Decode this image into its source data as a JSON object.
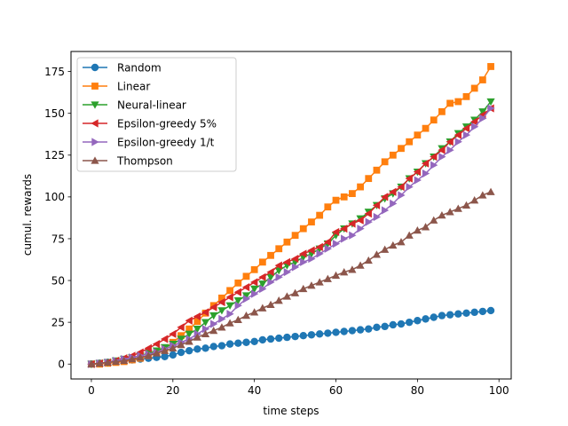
{
  "chart_data": {
    "type": "line",
    "title": "",
    "xlabel": "time steps",
    "ylabel": "cumul. rewards",
    "xlim": [
      -5,
      103
    ],
    "ylim": [
      -8.9,
      187
    ],
    "xticks": [
      0,
      20,
      40,
      60,
      80,
      100
    ],
    "yticks": [
      0,
      25,
      50,
      75,
      100,
      125,
      150,
      175
    ],
    "grid": false,
    "legend_position": "top-left",
    "x": [
      0,
      2,
      4,
      6,
      8,
      10,
      12,
      14,
      16,
      18,
      20,
      22,
      24,
      26,
      28,
      30,
      32,
      34,
      36,
      38,
      40,
      42,
      44,
      46,
      48,
      50,
      52,
      54,
      56,
      58,
      60,
      62,
      64,
      66,
      68,
      70,
      72,
      74,
      76,
      78,
      80,
      82,
      84,
      86,
      88,
      90,
      92,
      94,
      96,
      98
    ],
    "series": [
      {
        "name": "Random",
        "color": "#1f77b4",
        "marker": "circle",
        "values": [
          0,
          0.5,
          1,
          1.5,
          2,
          2.5,
          3,
          3.5,
          4,
          4.5,
          5.5,
          7,
          8,
          9,
          9.5,
          10.5,
          11,
          12,
          12.5,
          13,
          13.5,
          14.5,
          15,
          15.5,
          16,
          16.5,
          17,
          17.5,
          18,
          18.5,
          19,
          19.5,
          20,
          20.5,
          21,
          22,
          22.5,
          23.5,
          24,
          25,
          26,
          27,
          28,
          29,
          29.5,
          30,
          30.5,
          31,
          31.5,
          32
        ]
      },
      {
        "name": "Linear",
        "color": "#ff7f0e",
        "marker": "square",
        "values": [
          0,
          0,
          0.5,
          1,
          1.5,
          2.5,
          3.5,
          5,
          7,
          9.5,
          13,
          17,
          21,
          25.5,
          30.5,
          35,
          39.5,
          44,
          48.5,
          52.5,
          56.5,
          61,
          65,
          69,
          73,
          77,
          81,
          85,
          89,
          94,
          98,
          100,
          102,
          106,
          111,
          116,
          121,
          125,
          129,
          133,
          137,
          141,
          146,
          151,
          156,
          157,
          160,
          165,
          170,
          178
        ]
      },
      {
        "name": "Neural-linear",
        "color": "#2ca02c",
        "marker": "triangle-down",
        "values": [
          0,
          0.5,
          1,
          2,
          3,
          4,
          5,
          6.5,
          8,
          10,
          12,
          15,
          18,
          21,
          25,
          29,
          32,
          35,
          38,
          41,
          45,
          48,
          52,
          56,
          59,
          61,
          64,
          66,
          69,
          72,
          77,
          81,
          84,
          87,
          91,
          95,
          99,
          102,
          106,
          111,
          115,
          120,
          124,
          129,
          133,
          138,
          142,
          146,
          151,
          157
        ]
      },
      {
        "name": "Epsilon-greedy 5%",
        "color": "#d62728",
        "marker": "triangle-left",
        "values": [
          0,
          0.5,
          1,
          2,
          3.5,
          5,
          7,
          9.5,
          12,
          15,
          18,
          22,
          26,
          28.5,
          31,
          34,
          37,
          40,
          43,
          46,
          49,
          52,
          55,
          59,
          61,
          63,
          66,
          68,
          70,
          73,
          79,
          81,
          84,
          86,
          90,
          95,
          100,
          103,
          106,
          111,
          115,
          120,
          124,
          128,
          133,
          137,
          141,
          145,
          149,
          153
        ]
      },
      {
        "name": "Epsilon-greedy 1/t",
        "color": "#9467bd",
        "marker": "triangle-right",
        "values": [
          0,
          0.5,
          1,
          2,
          3,
          4,
          5,
          6,
          7,
          9,
          11,
          13,
          15,
          18,
          21,
          24,
          27,
          30,
          35,
          39,
          42,
          45,
          49,
          52,
          55,
          58,
          61,
          63,
          66,
          69,
          72,
          75,
          77,
          81,
          85,
          88,
          92,
          96,
          101,
          106,
          110,
          114,
          119,
          124,
          128,
          133,
          137,
          142,
          147,
          153
        ]
      },
      {
        "name": "Thompson",
        "color": "#8c564b",
        "marker": "triangle-up",
        "values": [
          0,
          0.5,
          1,
          1.5,
          2,
          3,
          4,
          5,
          6.5,
          8,
          9.5,
          11.5,
          13.5,
          16,
          18,
          20,
          22,
          24.5,
          26.5,
          29,
          31,
          33.5,
          35.5,
          38,
          40.5,
          42.5,
          45,
          47,
          49,
          51,
          53,
          55,
          56.5,
          59,
          62,
          65.5,
          68.5,
          71,
          73,
          77,
          80,
          82,
          86,
          89,
          91,
          93,
          95,
          98,
          101,
          103
        ]
      }
    ]
  }
}
